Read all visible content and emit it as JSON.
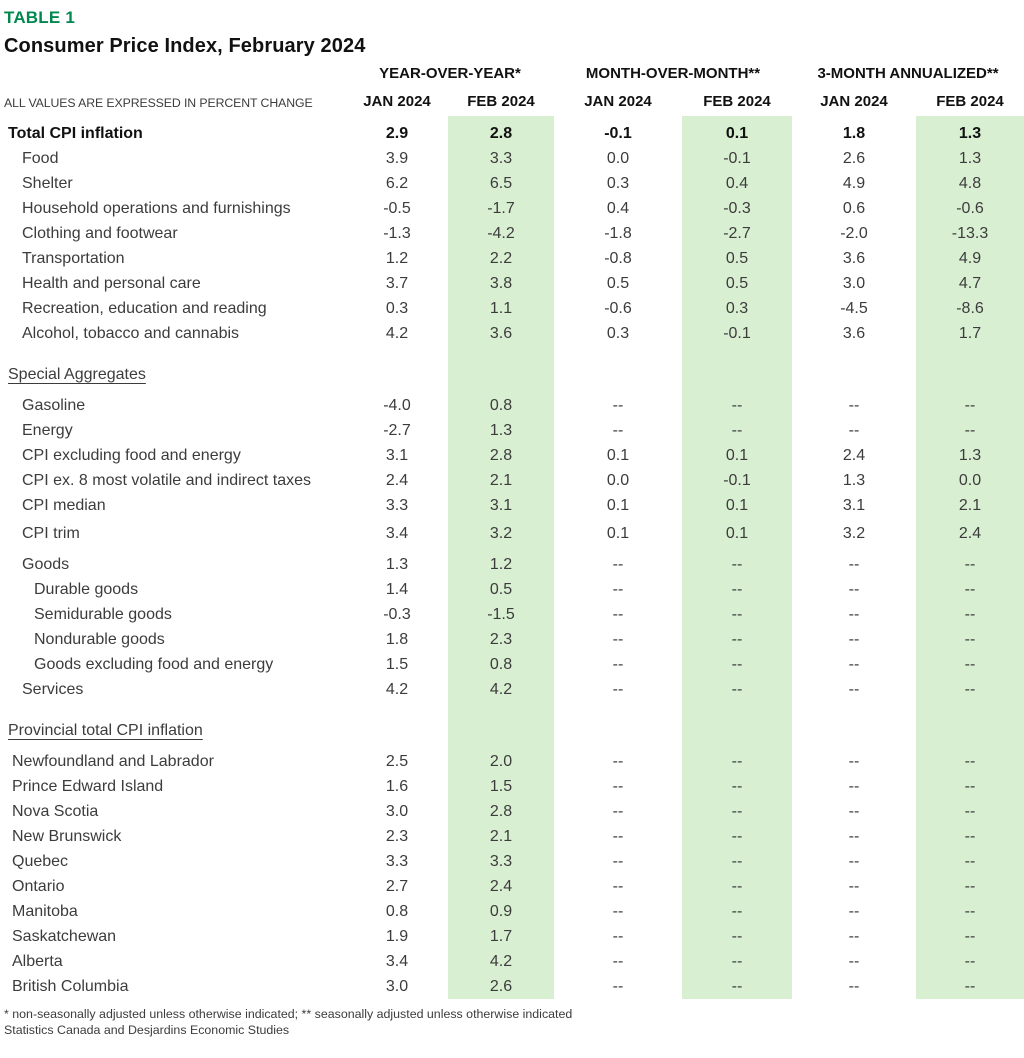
{
  "colors": {
    "accent": "#00884F",
    "band": "#D9EFD2",
    "text": "#3C3C3C",
    "heading": "#111111"
  },
  "header": {
    "table_tag": "TABLE 1",
    "title": "Consumer Price Index, February 2024",
    "units_note": "ALL VALUES ARE EXPRESSED IN PERCENT CHANGE"
  },
  "footnotes": {
    "note": "* non-seasonally adjusted unless otherwise indicated; ** seasonally adjusted unless otherwise indicated",
    "source": "Statistics Canada and Desjardins Economic Studies"
  },
  "chart_data": {
    "type": "table",
    "title": "Consumer Price Index, February 2024",
    "table_label": "TABLE 1",
    "units_note": "ALL VALUES ARE EXPRESSED IN PERCENT CHANGE",
    "column_groups": [
      "YEAR-OVER-YEAR*",
      "MONTH-OVER-MONTH**",
      "3-MONTH ANNUALIZED**"
    ],
    "columns": [
      "JAN 2024",
      "FEB 2024",
      "JAN 2024",
      "FEB 2024",
      "JAN 2024",
      "FEB 2024"
    ],
    "highlighted_columns": [
      "FEB 2024"
    ],
    "rows": [
      {
        "type": "spacer",
        "size": "xs"
      },
      {
        "type": "data",
        "label": "Total CPI inflation",
        "indent": 0,
        "bold": true,
        "values": [
          "2.9",
          "2.8",
          "-0.1",
          "0.1",
          "1.8",
          "1.3"
        ]
      },
      {
        "type": "data",
        "label": "Food",
        "indent": 1,
        "values": [
          "3.9",
          "3.3",
          "0.0",
          "-0.1",
          "2.6",
          "1.3"
        ]
      },
      {
        "type": "data",
        "label": "Shelter",
        "indent": 1,
        "values": [
          "6.2",
          "6.5",
          "0.3",
          "0.4",
          "4.9",
          "4.8"
        ]
      },
      {
        "type": "data",
        "label": "Household operations and furnishings",
        "indent": 1,
        "values": [
          "-0.5",
          "-1.7",
          "0.4",
          "-0.3",
          "0.6",
          "-0.6"
        ]
      },
      {
        "type": "data",
        "label": "Clothing and footwear",
        "indent": 1,
        "values": [
          "-1.3",
          "-4.2",
          "-1.8",
          "-2.7",
          "-2.0",
          "-13.3"
        ]
      },
      {
        "type": "data",
        "label": "Transportation",
        "indent": 1,
        "values": [
          "1.2",
          "2.2",
          "-0.8",
          "0.5",
          "3.6",
          "4.9"
        ]
      },
      {
        "type": "data",
        "label": "Health and personal care",
        "indent": 1,
        "values": [
          "3.7",
          "3.8",
          "0.5",
          "0.5",
          "3.0",
          "4.7"
        ]
      },
      {
        "type": "data",
        "label": "Recreation, education and reading",
        "indent": 1,
        "values": [
          "0.3",
          "1.1",
          "-0.6",
          "0.3",
          "-4.5",
          "-8.6"
        ]
      },
      {
        "type": "data",
        "label": "Alcohol, tobacco and cannabis",
        "indent": 1,
        "values": [
          "4.2",
          "3.6",
          "0.3",
          "-0.1",
          "3.6",
          "1.7"
        ]
      },
      {
        "type": "spacer",
        "size": "lg"
      },
      {
        "type": "section",
        "label": "Special Aggregates"
      },
      {
        "type": "spacer",
        "size": "md"
      },
      {
        "type": "data",
        "label": "Gasoline",
        "indent": 1,
        "values": [
          "-4.0",
          "0.8",
          "--",
          "--",
          "--",
          "--"
        ]
      },
      {
        "type": "data",
        "label": "Energy",
        "indent": 1,
        "values": [
          "-2.7",
          "1.3",
          "--",
          "--",
          "--",
          "--"
        ]
      },
      {
        "type": "data",
        "label": "CPI excluding food and energy",
        "indent": 1,
        "values": [
          "3.1",
          "2.8",
          "0.1",
          "0.1",
          "2.4",
          "1.3"
        ]
      },
      {
        "type": "data",
        "label": "CPI ex. 8 most volatile and indirect taxes",
        "indent": 1,
        "values": [
          "2.4",
          "2.1",
          "0.0",
          "-0.1",
          "1.3",
          "0.0"
        ]
      },
      {
        "type": "data",
        "label": "CPI median",
        "indent": 1,
        "values": [
          "3.3",
          "3.1",
          "0.1",
          "0.1",
          "3.1",
          "2.1"
        ]
      },
      {
        "type": "spacer",
        "size": "sm"
      },
      {
        "type": "data",
        "label": "CPI trim",
        "indent": 1,
        "values": [
          "3.4",
          "3.2",
          "0.1",
          "0.1",
          "3.2",
          "2.4"
        ]
      },
      {
        "type": "spacer",
        "size": "md"
      },
      {
        "type": "data",
        "label": "Goods",
        "indent": 1,
        "values": [
          "1.3",
          "1.2",
          "--",
          "--",
          "--",
          "--"
        ]
      },
      {
        "type": "data",
        "label": "Durable goods",
        "indent": 2,
        "values": [
          "1.4",
          "0.5",
          "--",
          "--",
          "--",
          "--"
        ]
      },
      {
        "type": "data",
        "label": "Semidurable goods",
        "indent": 2,
        "values": [
          "-0.3",
          "-1.5",
          "--",
          "--",
          "--",
          "--"
        ]
      },
      {
        "type": "data",
        "label": "Nondurable goods",
        "indent": 2,
        "values": [
          "1.8",
          "2.3",
          "--",
          "--",
          "--",
          "--"
        ]
      },
      {
        "type": "data",
        "label": "Goods excluding food and energy",
        "indent": 2,
        "values": [
          "1.5",
          "0.8",
          "--",
          "--",
          "--",
          "--"
        ]
      },
      {
        "type": "data",
        "label": "Services",
        "indent": 1,
        "values": [
          "4.2",
          "4.2",
          "--",
          "--",
          "--",
          "--"
        ]
      },
      {
        "type": "spacer",
        "size": "lg"
      },
      {
        "type": "section",
        "label": "Provincial total CPI inflation"
      },
      {
        "type": "spacer",
        "size": "md"
      },
      {
        "type": "data",
        "label": "Newfoundland and Labrador",
        "indent": "p",
        "values": [
          "2.5",
          "2.0",
          "--",
          "--",
          "--",
          "--"
        ]
      },
      {
        "type": "data",
        "label": "Prince Edward Island",
        "indent": "p",
        "values": [
          "1.6",
          "1.5",
          "--",
          "--",
          "--",
          "--"
        ]
      },
      {
        "type": "data",
        "label": "Nova Scotia",
        "indent": "p",
        "values": [
          "3.0",
          "2.8",
          "--",
          "--",
          "--",
          "--"
        ]
      },
      {
        "type": "data",
        "label": "New Brunswick",
        "indent": "p",
        "values": [
          "2.3",
          "2.1",
          "--",
          "--",
          "--",
          "--"
        ]
      },
      {
        "type": "data",
        "label": "Quebec",
        "indent": "p",
        "values": [
          "3.3",
          "3.3",
          "--",
          "--",
          "--",
          "--"
        ]
      },
      {
        "type": "data",
        "label": "Ontario",
        "indent": "p",
        "values": [
          "2.7",
          "2.4",
          "--",
          "--",
          "--",
          "--"
        ]
      },
      {
        "type": "data",
        "label": "Manitoba",
        "indent": "p",
        "values": [
          "0.8",
          "0.9",
          "--",
          "--",
          "--",
          "--"
        ]
      },
      {
        "type": "data",
        "label": "Saskatchewan",
        "indent": "p",
        "values": [
          "1.9",
          "1.7",
          "--",
          "--",
          "--",
          "--"
        ]
      },
      {
        "type": "data",
        "label": "Alberta",
        "indent": "p",
        "values": [
          "3.4",
          "4.2",
          "--",
          "--",
          "--",
          "--"
        ]
      },
      {
        "type": "data",
        "label": "British Columbia",
        "indent": "p",
        "values": [
          "3.0",
          "2.6",
          "--",
          "--",
          "--",
          "--"
        ]
      }
    ]
  }
}
